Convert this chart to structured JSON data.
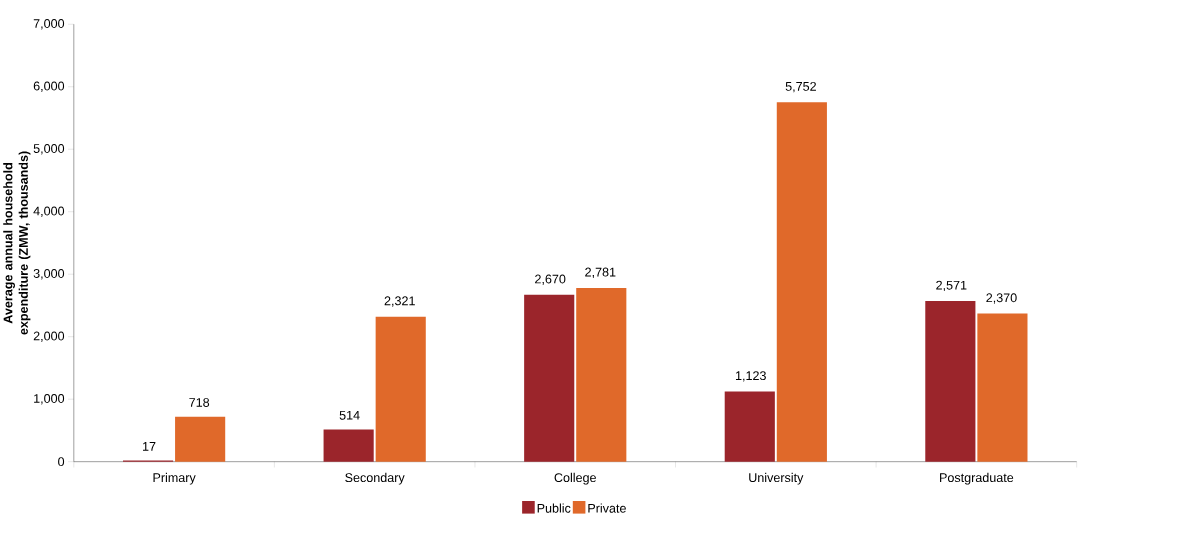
{
  "chart_data": {
    "type": "bar",
    "ylabel": "Average annual household expenditure (ZMW, thousands)",
    "categories": [
      "Primary",
      "Secondary",
      "College",
      "University",
      "Postgraduate"
    ],
    "series": [
      {
        "name": "Public",
        "color": "#9b252b",
        "values": [
          17,
          514,
          2670,
          1123,
          2571
        ],
        "value_labels": [
          "17",
          "514",
          "2,670",
          "1,123",
          "2,571"
        ]
      },
      {
        "name": "Private",
        "color": "#e0692a",
        "values": [
          718,
          2321,
          2781,
          5752,
          2370
        ],
        "value_labels": [
          "718",
          "2,321",
          "2,781",
          "5,752",
          "2,370"
        ]
      }
    ],
    "ylim": [
      0,
      7000
    ],
    "yticks": [
      0,
      {
        "value": 1000,
        "label": "1,000"
      },
      {
        "value": 2000,
        "label": "2,000"
      },
      {
        "value": 3000,
        "label": "3,000"
      },
      {
        "value": 4000,
        "label": "4,000"
      },
      {
        "value": 5000,
        "label": "5,000"
      },
      {
        "value": 6000,
        "label": "6,000"
      },
      {
        "value": 7000,
        "label": "7,000"
      }
    ],
    "grid": false,
    "legend": "bottom"
  }
}
